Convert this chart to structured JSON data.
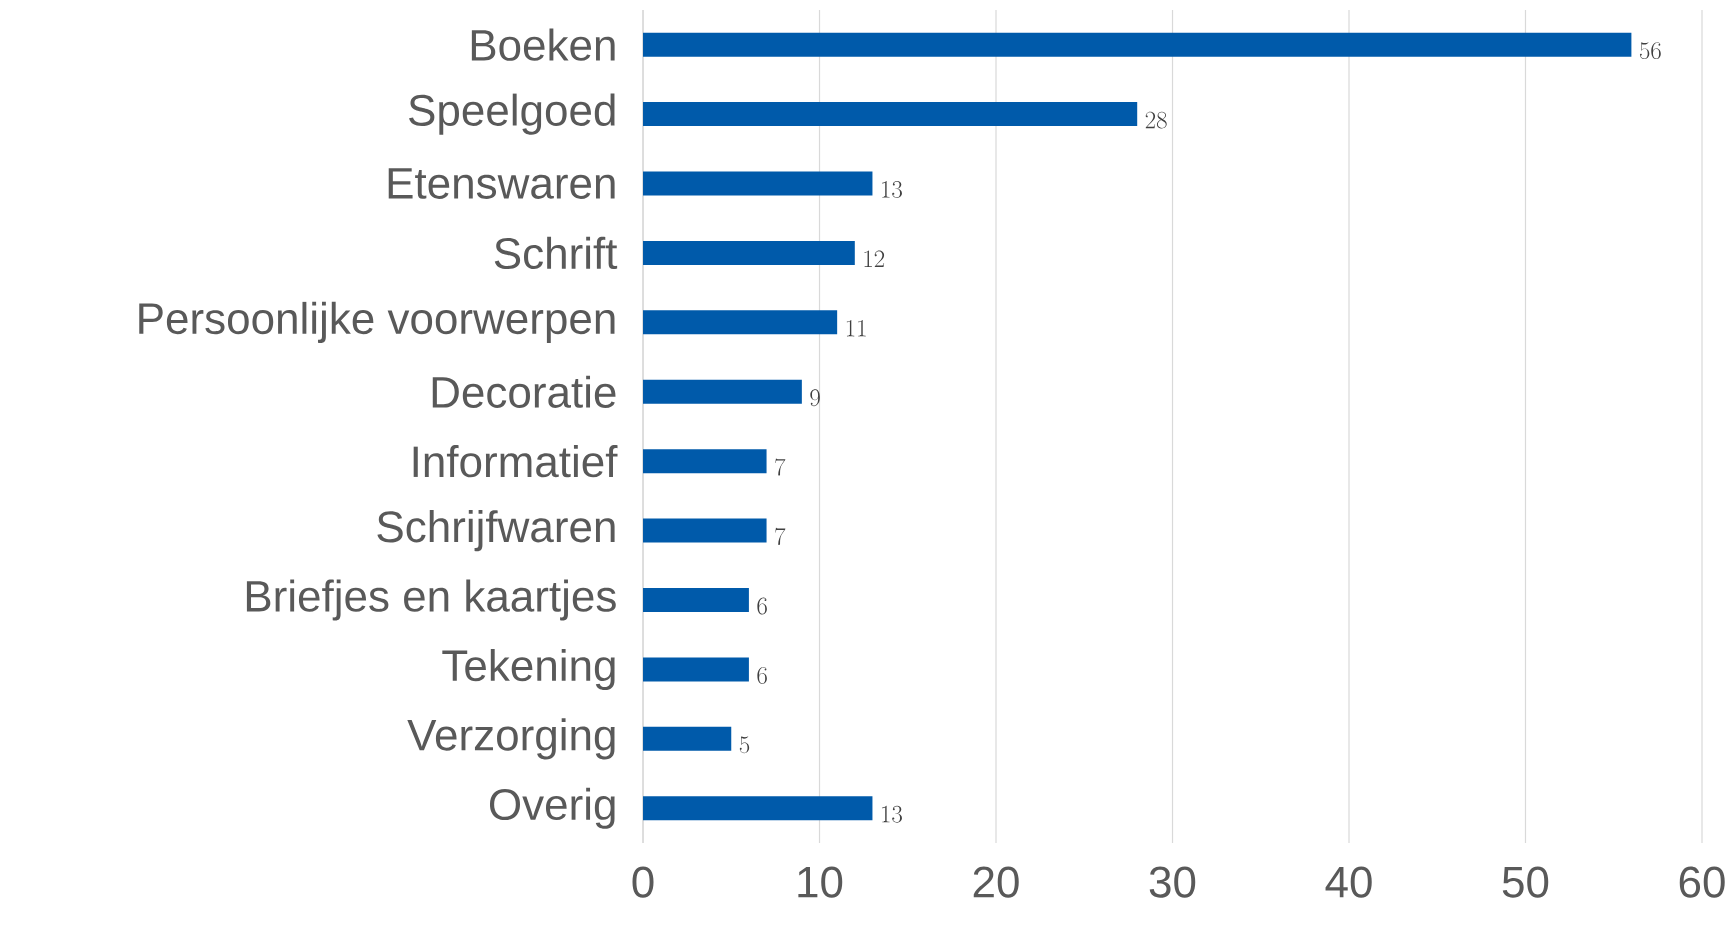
{
  "chart_data": {
    "type": "bar",
    "orientation": "horizontal",
    "categories": [
      "Boeken",
      "Speelgoed",
      "Etenswaren",
      "Schrift",
      "Persoonlijke voorwerpen",
      "Decoratie",
      "Informatief",
      "Schrijfwaren",
      "Briefjes en kaartjes",
      "Tekening",
      "Verzorging",
      "Overig"
    ],
    "values": [
      56,
      28,
      13,
      12,
      11,
      9,
      7,
      7,
      6,
      6,
      5,
      13
    ],
    "color": "#005aaa",
    "xlim": [
      0,
      60
    ],
    "xticks": [
      0,
      10,
      20,
      30,
      40,
      50,
      60
    ],
    "grid": "x",
    "data_labels": true
  }
}
